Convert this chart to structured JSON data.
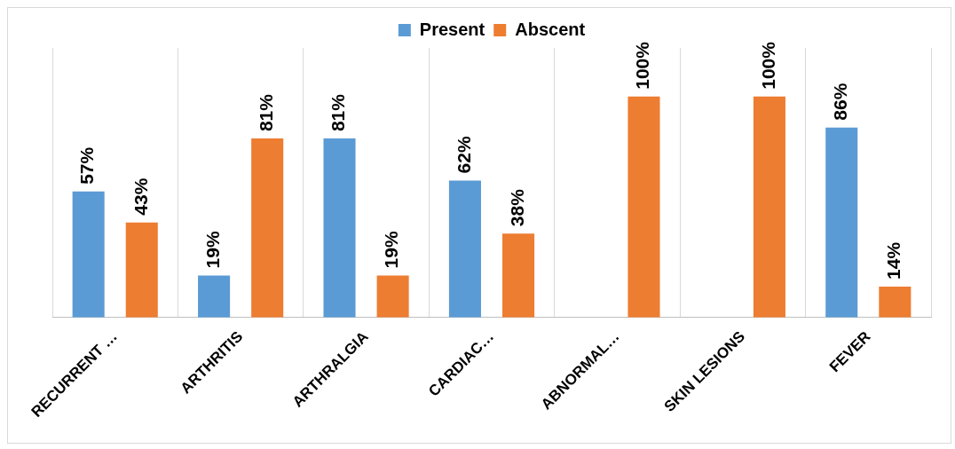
{
  "chart_data": {
    "type": "bar",
    "categories": [
      "RECURRENT …",
      "ARTHRITIS",
      "ARTHRALGIA",
      "CARDIAC…",
      "ABNORMAL…",
      "SKIN LESIONS",
      "FEVER"
    ],
    "series": [
      {
        "name": "Present",
        "color": "#5b9bd5",
        "values": [
          57,
          19,
          81,
          62,
          null,
          null,
          86
        ],
        "value_labels": [
          "57%",
          "19%",
          "81%",
          "62%",
          null,
          null,
          "86%"
        ]
      },
      {
        "name": "Abscent",
        "color": "#ed7d31",
        "values": [
          43,
          81,
          19,
          38,
          100,
          100,
          14
        ],
        "value_labels": [
          "43%",
          "81%",
          "19%",
          "38%",
          "100%",
          "100%",
          "14%"
        ]
      }
    ],
    "grid": "x",
    "legend": "top"
  }
}
